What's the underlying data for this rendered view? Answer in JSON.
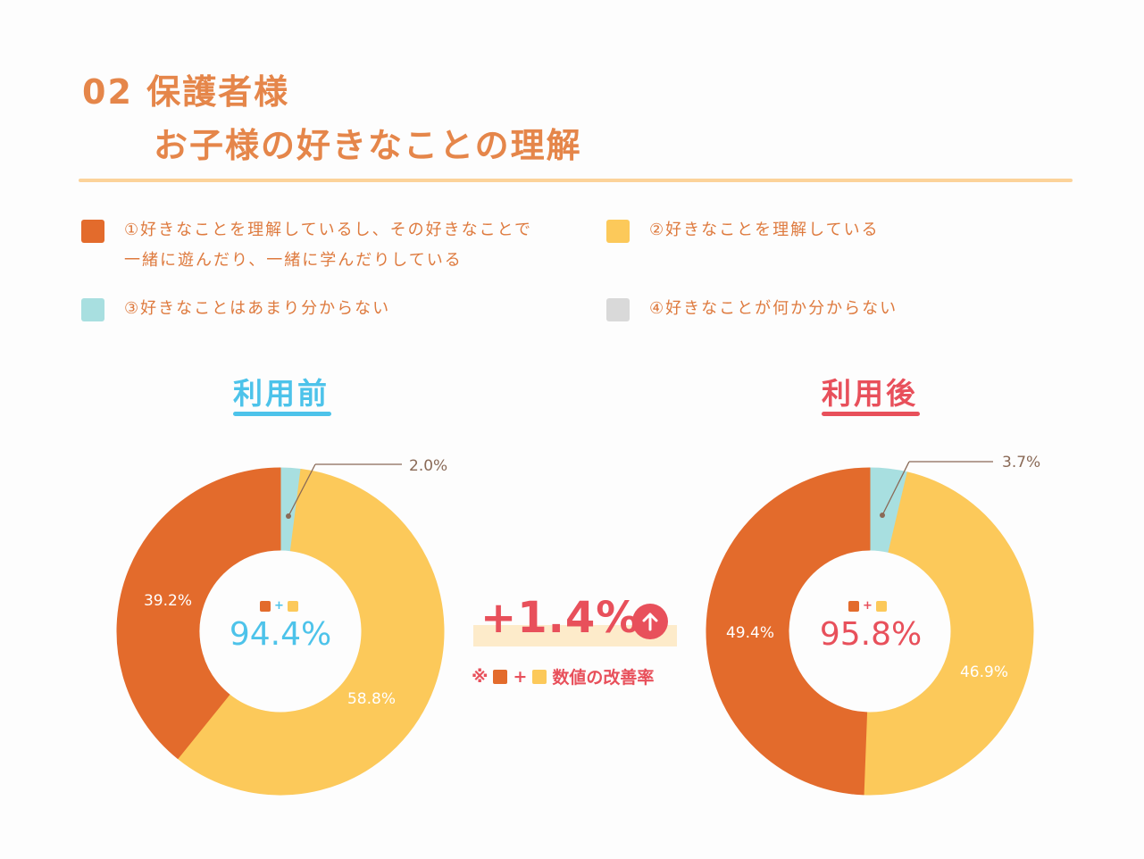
{
  "title": {
    "line1": "02 保護者様",
    "line2": "お子様の好きなことの理解"
  },
  "legend": [
    {
      "lines": [
        "①好きなことを理解しているし、その好きなことで",
        "一緒に遊んだり、一緒に学んだりしている"
      ],
      "color": "#e36b2c"
    },
    {
      "lines": [
        "②好きなことを理解している"
      ],
      "color": "#fcc95a"
    },
    {
      "lines": [
        "③好きなことはあまり分からない"
      ],
      "color": "#a8dfe0"
    },
    {
      "lines": [
        "④好きなことが何か分からない"
      ],
      "color": "#d9d9d9"
    }
  ],
  "before": {
    "label": "利用前",
    "accent": "#4dc3ea",
    "center_value": "94.4%",
    "center_plus": "+",
    "labels": {
      "s1": "39.2%",
      "s2": "58.8%",
      "s3": "2.0%"
    }
  },
  "after": {
    "label": "利用後",
    "accent": "#e8505b",
    "center_value": "95.8%",
    "center_plus": "+",
    "labels": {
      "s1": "49.4%",
      "s2": "46.9%",
      "s3": "3.7%"
    }
  },
  "improvement": {
    "value": "+1.4%",
    "note_prefix": "※",
    "note_plus": "+",
    "note_text": "数値の改善率"
  },
  "chart_data": [
    {
      "type": "pie",
      "title": "利用前",
      "categories": [
        "①",
        "②",
        "③",
        "④"
      ],
      "values": [
        39.2,
        58.8,
        2.0,
        0
      ],
      "center_total": 94.4
    },
    {
      "type": "pie",
      "title": "利用後",
      "categories": [
        "①",
        "②",
        "③",
        "④"
      ],
      "values": [
        49.4,
        46.9,
        3.7,
        0
      ],
      "center_total": 95.8
    }
  ]
}
